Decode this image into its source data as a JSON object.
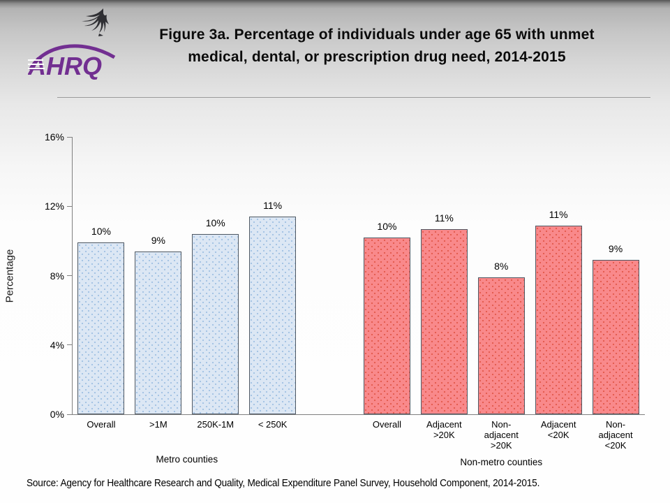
{
  "header": {
    "title_line1": "Figure 3a. Percentage of individuals under age 65 with unmet",
    "title_line2": "medical, dental, or prescription drug need, 2014-2015"
  },
  "logo": {
    "text": "AHRQ",
    "purple": "#722f91",
    "eagle_color": "#2f2f33"
  },
  "footer": {
    "source": "Source: Agency for Healthcare Research and Quality, Medical Expenditure Panel Survey, Household Component, 2014-2015."
  },
  "chart_data": {
    "type": "bar",
    "title": "",
    "xlabel": "",
    "ylabel": "Percentage",
    "ylim": [
      0,
      16
    ],
    "ytick_step": 4,
    "yticks": [
      "0%",
      "4%",
      "8%",
      "12%",
      "16%"
    ],
    "grid": false,
    "legend": "none",
    "axis_color": "#808080",
    "bar_border_color": "#4e5863",
    "groups": [
      {
        "name": "Metro counties",
        "fill_color": "#dce7f4",
        "dot_color": "#9fc0e2",
        "bars": [
          {
            "category": "Overall",
            "value": 9.9,
            "label": "10%"
          },
          {
            "category": ">1M",
            "value": 9.4,
            "label": "9%"
          },
          {
            "category": "250K-1M",
            "value": 10.4,
            "label": "10%"
          },
          {
            "category": "< 250K",
            "value": 11.4,
            "label": "11%"
          }
        ]
      },
      {
        "name": "Non-metro counties",
        "fill_color": "#f9898b",
        "dot_color": "#e2584a",
        "bars": [
          {
            "category": "Overall",
            "value": 10.2,
            "label": "10%"
          },
          {
            "category": "Adjacent\n>20K",
            "value": 10.7,
            "label": "11%"
          },
          {
            "category": "Non-\nadjacent\n>20K",
            "value": 7.9,
            "label": "8%"
          },
          {
            "category": "Adjacent\n<20K",
            "value": 10.9,
            "label": "11%"
          },
          {
            "category": "Non-\nadjacent\n<20K",
            "value": 8.9,
            "label": "9%"
          }
        ]
      }
    ]
  }
}
